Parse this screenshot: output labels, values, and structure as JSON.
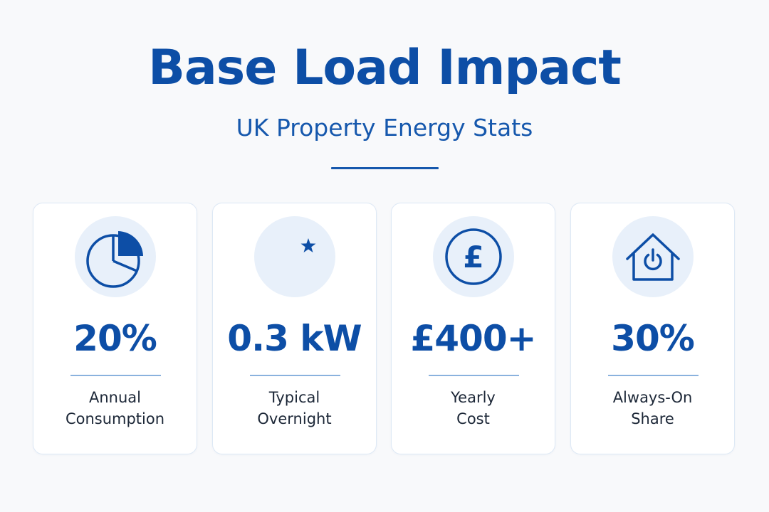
{
  "header": {
    "title": "Base Load Impact",
    "subtitle": "UK Property Energy Stats"
  },
  "cards": [
    {
      "icon": "pie-chart-icon",
      "value": "20%",
      "label_line1": "Annual",
      "label_line2": "Consumption"
    },
    {
      "icon": "moon-star-icon",
      "value": "0.3 kW",
      "label_line1": "Typical",
      "label_line2": "Overnight"
    },
    {
      "icon": "pound-coin-icon",
      "value": "£400+",
      "label_line1": "Yearly",
      "label_line2": "Cost"
    },
    {
      "icon": "house-power-icon",
      "value": "30%",
      "label_line1": "Always-On",
      "label_line2": "Share"
    }
  ],
  "colors": {
    "primary": "#0d4ea6",
    "icon_bg": "#e8f0fa",
    "card_border": "#dde8f5",
    "text_dark": "#1c2737"
  }
}
